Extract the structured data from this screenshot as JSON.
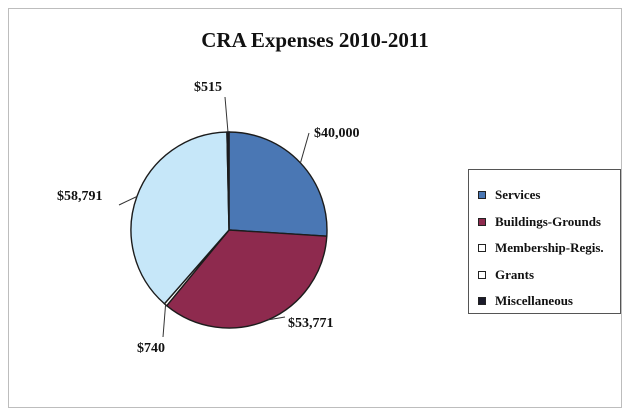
{
  "chart_data": {
    "type": "pie",
    "title": "CRA Expenses 2010-2011",
    "categories": [
      "Services",
      "Buildings-Grounds",
      "Membership-Regis.",
      "Grants",
      "Miscellaneous"
    ],
    "values": [
      40000,
      53771,
      740,
      58791,
      515
    ],
    "value_labels": [
      "$40,000",
      "$53,771",
      "$740",
      "$58,791",
      "$515"
    ],
    "slice_colors": [
      "#4a77b4",
      "#8e2a4e",
      "#ffffff",
      "#c6e7f9",
      "#1a1a2a"
    ],
    "legend_swatch_colors": [
      "#4a77b4",
      "#8e2a4e",
      "#ffffff",
      "#ffffff",
      "#1a1a2a"
    ],
    "start_angle_deg": 0,
    "direction": "clockwise",
    "legend_position": "right"
  }
}
